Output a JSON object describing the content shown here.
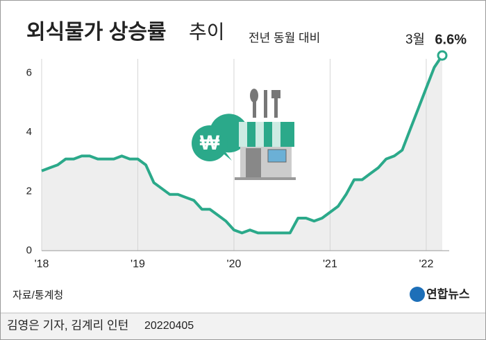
{
  "chart_data": {
    "type": "line",
    "title": "외식물가 상승률",
    "title_suffix": "추이",
    "subtitle": "전년 동월 대비",
    "source": "자료/통계청",
    "logo": "연합뉴스",
    "byline": "김영은 기자, 김계리 인턴",
    "date": "20220405",
    "end_label": "3월",
    "categories": [
      "'18",
      null,
      null,
      null,
      null,
      null,
      null,
      null,
      null,
      null,
      null,
      null,
      "'19",
      null,
      null,
      null,
      null,
      null,
      null,
      null,
      null,
      null,
      null,
      null,
      "'20",
      null,
      null,
      null,
      null,
      null,
      null,
      null,
      null,
      null,
      null,
      null,
      "'21",
      null,
      null,
      null,
      null,
      null,
      null,
      null,
      null,
      null,
      null,
      null,
      "'22",
      null,
      null
    ],
    "series": [
      {
        "color": "#2ba98a",
        "values": [
          2.7,
          2.8,
          2.9,
          3.1,
          3.1,
          3.2,
          3.2,
          3.1,
          3.1,
          3.1,
          3.2,
          3.1,
          3.1,
          2.9,
          2.3,
          2.1,
          1.9,
          1.9,
          1.8,
          1.7,
          1.4,
          1.4,
          1.2,
          1.0,
          0.7,
          0.6,
          0.7,
          0.6,
          0.6,
          0.6,
          0.6,
          0.6,
          1.1,
          1.1,
          1.0,
          1.1,
          1.3,
          1.5,
          1.9,
          2.4,
          2.4,
          2.6,
          2.8,
          3.1,
          3.2,
          3.4,
          4.1,
          4.8,
          5.5,
          6.2,
          6.6
        ],
        "value_labels": [
          null,
          null,
          null,
          null,
          null,
          null,
          null,
          null,
          null,
          null,
          null,
          null,
          null,
          null,
          null,
          null,
          null,
          null,
          null,
          null,
          null,
          null,
          null,
          null,
          null,
          null,
          null,
          null,
          null,
          null,
          null,
          null,
          null,
          null,
          null,
          null,
          null,
          null,
          null,
          null,
          null,
          null,
          null,
          null,
          null,
          null,
          null,
          null,
          null,
          null,
          "6.6%"
        ]
      }
    ],
    "ylim": [
      0,
      7
    ],
    "yticks": [
      0,
      2,
      4,
      6
    ],
    "grid": true,
    "area_color": "#eeeeee"
  }
}
